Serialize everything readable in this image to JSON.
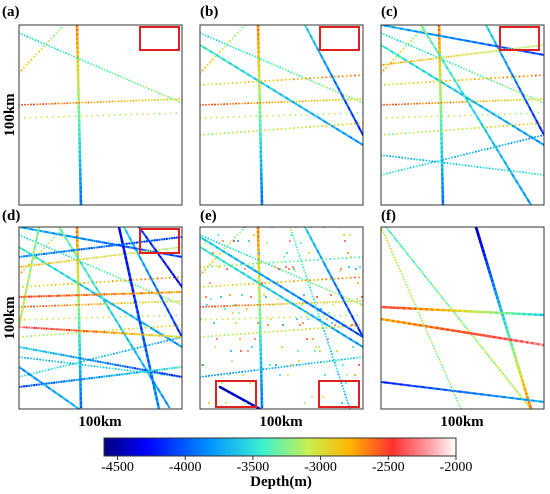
{
  "panels": [
    {
      "label": "(a)",
      "xlabel": "",
      "ylabel": "100km"
    },
    {
      "label": "(b)",
      "xlabel": "",
      "ylabel": ""
    },
    {
      "label": "(c)",
      "xlabel": "",
      "ylabel": ""
    },
    {
      "label": "(d)",
      "xlabel": "100km",
      "ylabel": "100km"
    },
    {
      "label": "(e)",
      "xlabel": "100km",
      "ylabel": ""
    },
    {
      "label": "(f)",
      "xlabel": "100km",
      "ylabel": ""
    }
  ],
  "colorbar": {
    "label": "Depth(m)",
    "ticks": [
      "-4500",
      "-4000",
      "-3500",
      "-3000",
      "-2500",
      "-2000"
    ],
    "tick_values": [
      -4500,
      -4000,
      -3500,
      -3000,
      -2500,
      -2000
    ],
    "range": [
      -4600,
      -2000
    ],
    "colormap": "jet-to-white"
  },
  "colors": {
    "highlight_box": "#e02020",
    "frame": "#333333"
  },
  "chart_data": {
    "type": "scatter",
    "title": "",
    "value_name": "Depth(m)",
    "value_range": [
      -4600,
      -2000
    ],
    "panel_extent_km": 100,
    "panels": [
      "(a)",
      "(b)",
      "(c)",
      "(d)",
      "(e)",
      "(f)"
    ]
  }
}
